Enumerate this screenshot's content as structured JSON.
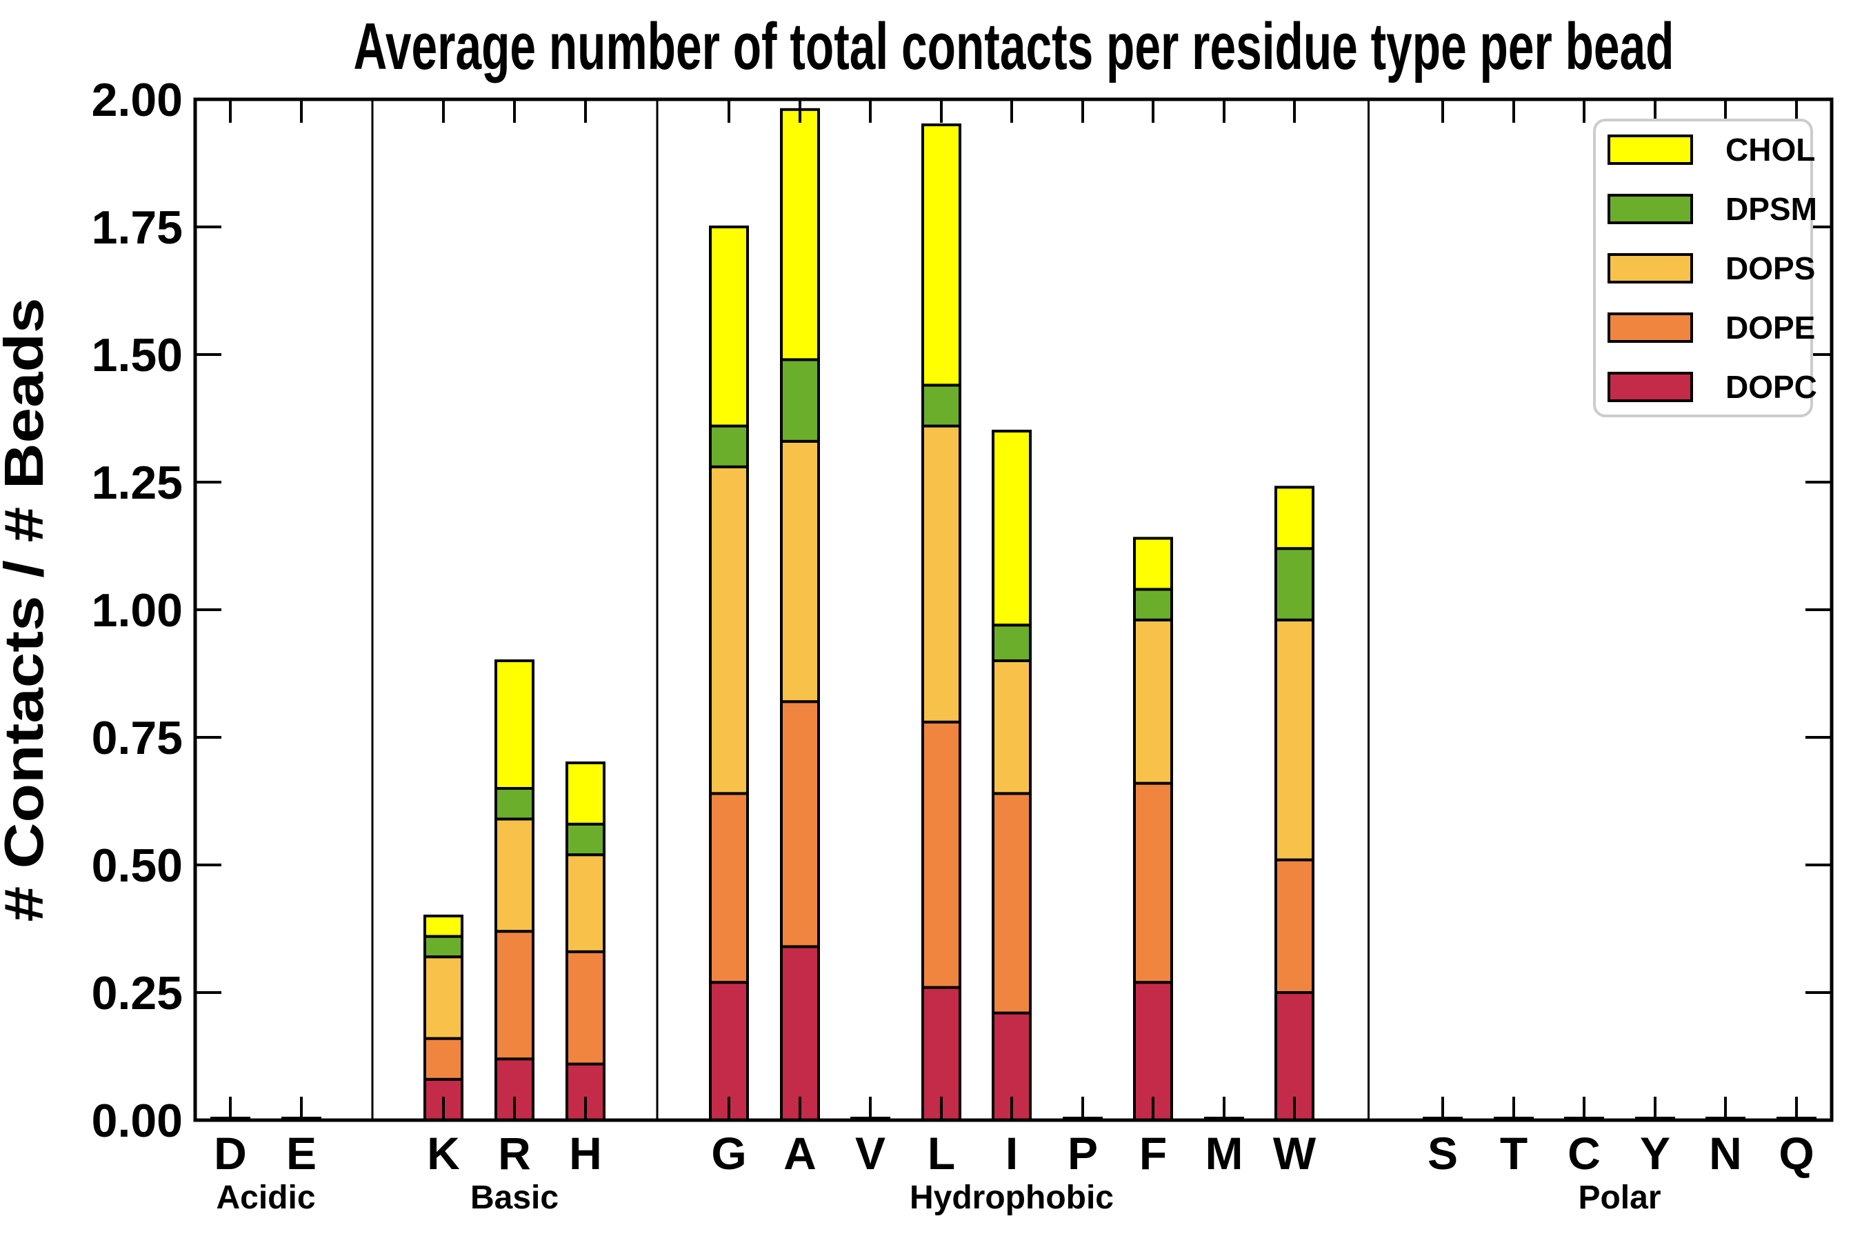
{
  "chart_data": {
    "type": "bar",
    "stacked": true,
    "title": "Average number of total contacts per residue type per bead",
    "xlabel": "",
    "ylabel": "# Contacts / # Beads",
    "ylim": [
      0.0,
      2.0
    ],
    "ytick_labels": [
      "0.00",
      "0.25",
      "0.50",
      "0.75",
      "1.00",
      "1.25",
      "1.50",
      "1.75",
      "2.00"
    ],
    "grid": false,
    "categories": [
      "D",
      "E",
      "K",
      "R",
      "H",
      "G",
      "A",
      "V",
      "L",
      "I",
      "P",
      "F",
      "M",
      "W",
      "S",
      "T",
      "C",
      "Y",
      "N",
      "Q"
    ],
    "groups": [
      {
        "label": "Acidic",
        "categories": [
          "D",
          "E"
        ]
      },
      {
        "label": "Basic",
        "categories": [
          "K",
          "R",
          "H"
        ]
      },
      {
        "label": "Hydrophobic",
        "categories": [
          "G",
          "A",
          "V",
          "L",
          "I",
          "P",
          "F",
          "M",
          "W"
        ]
      },
      {
        "label": "Polar",
        "categories": [
          "S",
          "T",
          "C",
          "Y",
          "N",
          "Q"
        ]
      }
    ],
    "series": [
      {
        "name": "DOPC",
        "color": "#C42B49",
        "values": [
          0.004,
          0.004,
          0.08,
          0.12,
          0.11,
          0.27,
          0.34,
          0.004,
          0.26,
          0.21,
          0.004,
          0.27,
          0.004,
          0.25,
          0.004,
          0.004,
          0.004,
          0.004,
          0.004,
          0.004
        ]
      },
      {
        "name": "DOPE",
        "color": "#F08540",
        "values": [
          0,
          0,
          0.08,
          0.25,
          0.22,
          0.37,
          0.48,
          0,
          0.52,
          0.43,
          0,
          0.39,
          0,
          0.26,
          0,
          0,
          0,
          0,
          0,
          0
        ]
      },
      {
        "name": "DOPS",
        "color": "#F8C24A",
        "values": [
          0,
          0,
          0.16,
          0.22,
          0.19,
          0.64,
          0.51,
          0,
          0.58,
          0.26,
          0,
          0.32,
          0,
          0.47,
          0,
          0,
          0,
          0,
          0,
          0
        ]
      },
      {
        "name": "DPSM",
        "color": "#6BAE2C",
        "values": [
          0,
          0,
          0.04,
          0.06,
          0.06,
          0.08,
          0.16,
          0,
          0.08,
          0.07,
          0,
          0.06,
          0,
          0.14,
          0,
          0,
          0,
          0,
          0,
          0
        ]
      },
      {
        "name": "CHOL",
        "color": "#FFFF00",
        "values": [
          0,
          0,
          0.04,
          0.25,
          0.12,
          0.39,
          0.49,
          0,
          0.51,
          0.38,
          0,
          0.1,
          0,
          0.12,
          0,
          0,
          0,
          0,
          0,
          0
        ]
      }
    ],
    "bar_totals": {
      "K": 0.4,
      "R": 0.9,
      "H": 0.7,
      "G": 1.75,
      "A": 1.98,
      "L": 1.95,
      "I": 1.35,
      "F": 1.14,
      "W": 1.24
    },
    "legend": {
      "position": "upper right",
      "entries": [
        "CHOL",
        "DPSM",
        "DOPS",
        "DOPE",
        "DOPC"
      ]
    },
    "colors": {
      "CHOL": "#FFFF00",
      "DPSM": "#6BAE2C",
      "DOPS": "#F8C24A",
      "DOPE": "#F08540",
      "DOPC": "#C42B49",
      "bar_outline": "#000000",
      "legend_border": "#cccccc",
      "background": "#ffffff"
    }
  }
}
